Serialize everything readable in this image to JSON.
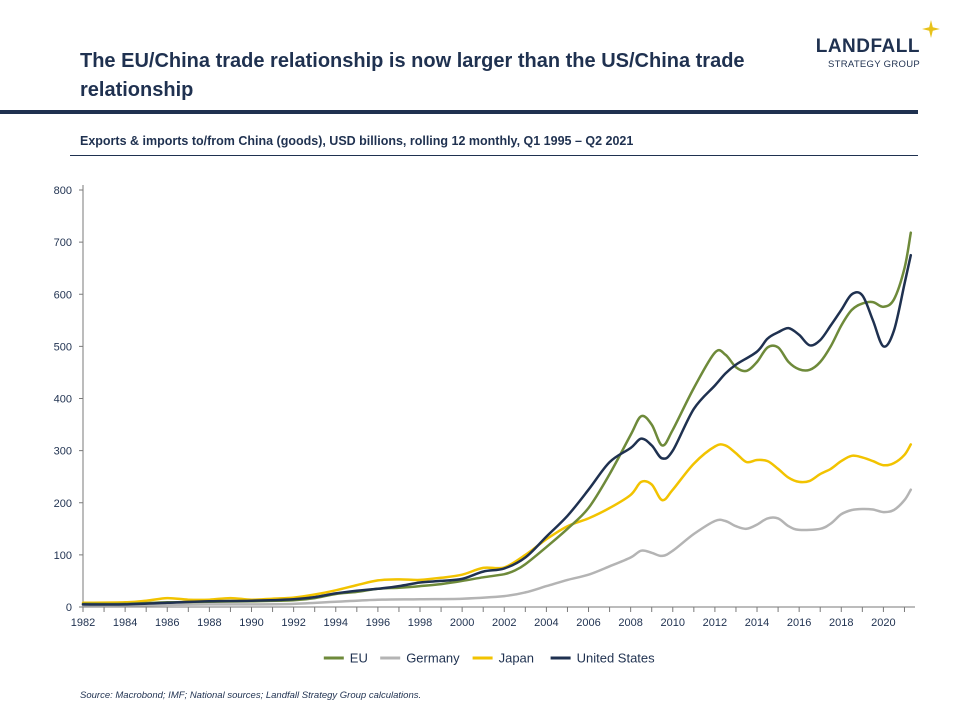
{
  "header": {
    "title": "The EU/China trade relationship is now larger than the US/China trade relationship",
    "subtitle": "Exports & imports to/from China (goods), USD billions, rolling 12 monthly, Q1 1995 – Q2 2021"
  },
  "logo": {
    "name": "LANDFALL",
    "sub": "STRATEGY GROUP",
    "star_color": "#e8c21a"
  },
  "source": "Source: Macrobond; IMF; National sources; Landfall Strategy Group calculations.",
  "chart_data": {
    "type": "line",
    "title": "",
    "xlabel": "",
    "ylabel": "",
    "xlim": [
      1982,
      2021.5
    ],
    "ylim": [
      0,
      800
    ],
    "x_ticks": [
      "1982",
      "1984",
      "1986",
      "1988",
      "1990",
      "1992",
      "1994",
      "1996",
      "1998",
      "2000",
      "2002",
      "2004",
      "2006",
      "2008",
      "2010",
      "2012",
      "2014",
      "2016",
      "2018",
      "2020"
    ],
    "y_ticks": [
      "0",
      "100",
      "200",
      "300",
      "400",
      "500",
      "600",
      "700",
      "800"
    ],
    "legend_position": "bottom",
    "grid": false,
    "series": [
      {
        "name": "EU",
        "color": "#6e8a3a",
        "points": [
          [
            1982,
            6
          ],
          [
            1984,
            6
          ],
          [
            1986,
            9
          ],
          [
            1988,
            10
          ],
          [
            1990,
            11
          ],
          [
            1992,
            13
          ],
          [
            1993,
            17
          ],
          [
            1994,
            25
          ],
          [
            1995,
            29
          ],
          [
            1996,
            35
          ],
          [
            1997,
            37
          ],
          [
            1998,
            40
          ],
          [
            1999,
            44
          ],
          [
            2000,
            50
          ],
          [
            2001,
            57
          ],
          [
            2002,
            63
          ],
          [
            2002.5,
            70
          ],
          [
            2003,
            82
          ],
          [
            2004,
            115
          ],
          [
            2005,
            150
          ],
          [
            2006,
            190
          ],
          [
            2007,
            255
          ],
          [
            2008,
            330
          ],
          [
            2008.5,
            366
          ],
          [
            2009,
            350
          ],
          [
            2009.5,
            310
          ],
          [
            2010,
            340
          ],
          [
            2011,
            420
          ],
          [
            2012,
            488
          ],
          [
            2012.5,
            484
          ],
          [
            2013,
            460
          ],
          [
            2013.5,
            453
          ],
          [
            2014,
            470
          ],
          [
            2014.5,
            498
          ],
          [
            2015,
            498
          ],
          [
            2015.5,
            470
          ],
          [
            2016,
            456
          ],
          [
            2016.5,
            455
          ],
          [
            2017,
            470
          ],
          [
            2017.5,
            500
          ],
          [
            2018,
            540
          ],
          [
            2018.5,
            570
          ],
          [
            2019,
            582
          ],
          [
            2019.5,
            585
          ],
          [
            2020,
            576
          ],
          [
            2020.5,
            590
          ],
          [
            2021,
            650
          ],
          [
            2021.3,
            718
          ]
        ]
      },
      {
        "name": "Germany",
        "color": "#b4b4b4",
        "points": [
          [
            1982,
            3
          ],
          [
            1984,
            3
          ],
          [
            1986,
            4
          ],
          [
            1988,
            5
          ],
          [
            1990,
            5
          ],
          [
            1992,
            6
          ],
          [
            1994,
            10
          ],
          [
            1996,
            14
          ],
          [
            1998,
            15
          ],
          [
            2000,
            16
          ],
          [
            2002,
            21
          ],
          [
            2003,
            28
          ],
          [
            2004,
            40
          ],
          [
            2005,
            52
          ],
          [
            2006,
            62
          ],
          [
            2007,
            78
          ],
          [
            2008,
            95
          ],
          [
            2008.5,
            108
          ],
          [
            2009,
            104
          ],
          [
            2009.5,
            98
          ],
          [
            2010,
            108
          ],
          [
            2011,
            140
          ],
          [
            2012,
            165
          ],
          [
            2012.5,
            165
          ],
          [
            2013,
            155
          ],
          [
            2013.5,
            150
          ],
          [
            2014,
            158
          ],
          [
            2014.5,
            170
          ],
          [
            2015,
            170
          ],
          [
            2015.5,
            155
          ],
          [
            2016,
            148
          ],
          [
            2017,
            150
          ],
          [
            2017.5,
            160
          ],
          [
            2018,
            178
          ],
          [
            2018.5,
            186
          ],
          [
            2019,
            188
          ],
          [
            2019.5,
            187
          ],
          [
            2020,
            182
          ],
          [
            2020.5,
            186
          ],
          [
            2021,
            205
          ],
          [
            2021.3,
            225
          ]
        ]
      },
      {
        "name": "Japan",
        "color": "#f2c300",
        "points": [
          [
            1982,
            8
          ],
          [
            1984,
            9
          ],
          [
            1985,
            12
          ],
          [
            1986,
            17
          ],
          [
            1987,
            14
          ],
          [
            1988,
            14
          ],
          [
            1989,
            17
          ],
          [
            1990,
            14
          ],
          [
            1991,
            16
          ],
          [
            1992,
            18
          ],
          [
            1993,
            24
          ],
          [
            1994,
            32
          ],
          [
            1995,
            42
          ],
          [
            1996,
            51
          ],
          [
            1997,
            53
          ],
          [
            1998,
            52
          ],
          [
            1999,
            56
          ],
          [
            2000,
            62
          ],
          [
            2001,
            75
          ],
          [
            2002,
            76
          ],
          [
            2003,
            100
          ],
          [
            2004,
            130
          ],
          [
            2005,
            155
          ],
          [
            2006,
            170
          ],
          [
            2007,
            190
          ],
          [
            2008,
            215
          ],
          [
            2008.5,
            240
          ],
          [
            2009,
            235
          ],
          [
            2009.5,
            205
          ],
          [
            2010,
            225
          ],
          [
            2011,
            275
          ],
          [
            2012,
            308
          ],
          [
            2012.5,
            310
          ],
          [
            2013,
            295
          ],
          [
            2013.5,
            278
          ],
          [
            2014,
            282
          ],
          [
            2014.5,
            280
          ],
          [
            2015,
            265
          ],
          [
            2015.5,
            248
          ],
          [
            2016,
            240
          ],
          [
            2016.5,
            242
          ],
          [
            2017,
            255
          ],
          [
            2017.5,
            265
          ],
          [
            2018,
            280
          ],
          [
            2018.5,
            290
          ],
          [
            2019,
            287
          ],
          [
            2019.5,
            280
          ],
          [
            2020,
            272
          ],
          [
            2020.5,
            276
          ],
          [
            2021,
            292
          ],
          [
            2021.3,
            312
          ]
        ]
      },
      {
        "name": "United States",
        "color": "#1f3150",
        "points": [
          [
            1982,
            5
          ],
          [
            1984,
            5
          ],
          [
            1986,
            8
          ],
          [
            1988,
            11
          ],
          [
            1990,
            12
          ],
          [
            1992,
            15
          ],
          [
            1993,
            19
          ],
          [
            1994,
            26
          ],
          [
            1995,
            31
          ],
          [
            1996,
            35
          ],
          [
            1997,
            40
          ],
          [
            1998,
            47
          ],
          [
            1999,
            50
          ],
          [
            2000,
            54
          ],
          [
            2001,
            68
          ],
          [
            2002,
            74
          ],
          [
            2003,
            95
          ],
          [
            2004,
            135
          ],
          [
            2005,
            175
          ],
          [
            2006,
            225
          ],
          [
            2007,
            278
          ],
          [
            2008,
            305
          ],
          [
            2008.5,
            323
          ],
          [
            2009,
            310
          ],
          [
            2009.5,
            285
          ],
          [
            2010,
            300
          ],
          [
            2011,
            380
          ],
          [
            2012,
            425
          ],
          [
            2012.5,
            448
          ],
          [
            2013,
            465
          ],
          [
            2014,
            490
          ],
          [
            2014.5,
            515
          ],
          [
            2015,
            527
          ],
          [
            2015.5,
            535
          ],
          [
            2016,
            522
          ],
          [
            2016.5,
            502
          ],
          [
            2017,
            512
          ],
          [
            2017.5,
            540
          ],
          [
            2018,
            570
          ],
          [
            2018.5,
            600
          ],
          [
            2019,
            598
          ],
          [
            2019.5,
            550
          ],
          [
            2020,
            500
          ],
          [
            2020.5,
            530
          ],
          [
            2021,
            620
          ],
          [
            2021.3,
            675
          ]
        ]
      }
    ]
  }
}
